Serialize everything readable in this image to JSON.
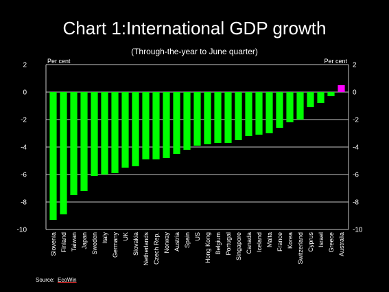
{
  "chart_data": {
    "type": "bar",
    "title": "Chart 1:International GDP growth",
    "subtitle": "(Through-the-year to June quarter)",
    "ylabel_left": "Per cent",
    "ylabel_right": "Per cent",
    "ylim": [
      -10,
      2
    ],
    "yticks": [
      2,
      0,
      -2,
      -4,
      -6,
      -8,
      -10
    ],
    "grid": true,
    "categories": [
      "Slovenia",
      "Finland",
      "Taiwan",
      "Japan",
      "Sweden",
      "Italy",
      "Germany",
      "UK",
      "Slovakia",
      "Netherlands",
      "Czech Rep.",
      "Norway",
      "Austria",
      "Spain",
      "US",
      "Hong Kong",
      "Belgium",
      "Portugal",
      "Singapore",
      "Canada",
      "Iceland",
      "Malta",
      "France",
      "Korea",
      "Switzerland",
      "Cyprus",
      "Israel",
      "Greece",
      "Australia"
    ],
    "values": [
      -9.3,
      -8.9,
      -7.5,
      -7.2,
      -6.1,
      -6.0,
      -5.9,
      -5.5,
      -5.4,
      -4.9,
      -4.9,
      -4.8,
      -4.5,
      -4.2,
      -3.9,
      -3.8,
      -3.7,
      -3.7,
      -3.5,
      -3.2,
      -3.1,
      -3.0,
      -2.6,
      -2.2,
      -2.0,
      -1.1,
      -0.8,
      -0.3,
      0.5
    ],
    "colors": {
      "default": "#00ff00",
      "highlight": "#ff00ff",
      "highlight_category": "Australia",
      "background": "#000000",
      "text": "#ffffff"
    }
  },
  "source": {
    "label": "Source:",
    "name": "EcoWin"
  }
}
